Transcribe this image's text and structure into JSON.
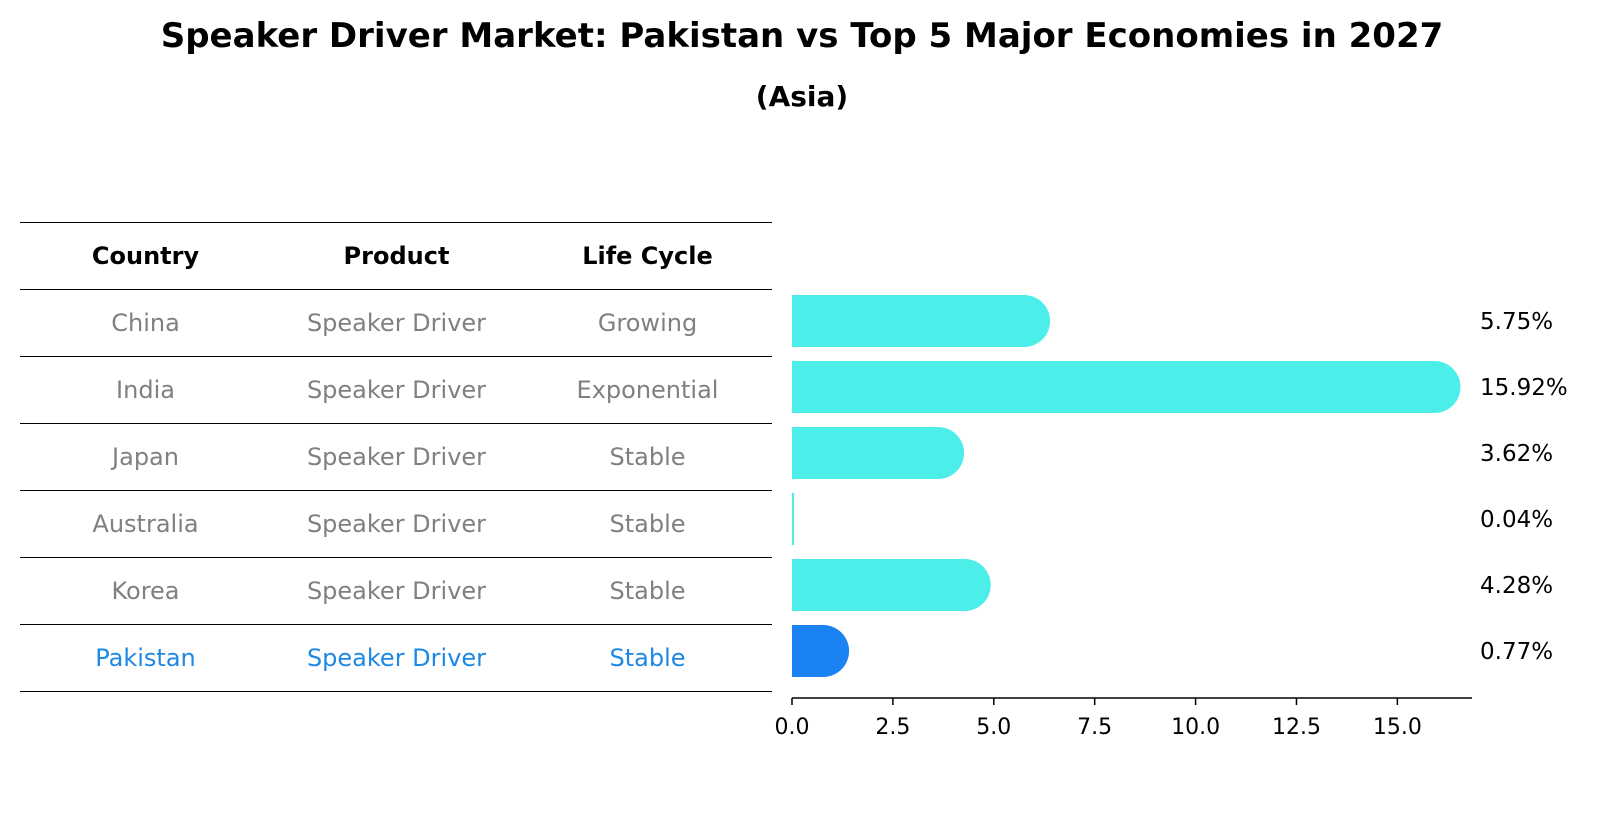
{
  "title": "Speaker Driver Market: Pakistan vs Top 5 Major Economies in 2027",
  "subtitle": "(Asia)",
  "table": {
    "headers": [
      "Country",
      "Product",
      "Life Cycle"
    ],
    "rows": [
      {
        "country": "China",
        "product": "Speaker Driver",
        "life_cycle": "Growing"
      },
      {
        "country": "India",
        "product": "Speaker Driver",
        "life_cycle": "Exponential"
      },
      {
        "country": "Japan",
        "product": "Speaker Driver",
        "life_cycle": "Stable"
      },
      {
        "country": "Australia",
        "product": "Speaker Driver",
        "life_cycle": "Stable"
      },
      {
        "country": "Korea",
        "product": "Speaker Driver",
        "life_cycle": "Stable"
      },
      {
        "country": "Pakistan",
        "product": "Speaker Driver",
        "life_cycle": "Stable"
      }
    ]
  },
  "colors": {
    "bar": "#4ceeea",
    "highlight_bar": "#1a82f2",
    "highlight_text": "#1e88e5",
    "row_text": "#808080"
  },
  "chart_data": {
    "type": "bar",
    "orientation": "horizontal",
    "categories": [
      "China",
      "India",
      "Japan",
      "Australia",
      "Korea",
      "Pakistan"
    ],
    "values": [
      5.75,
      15.92,
      3.62,
      0.04,
      4.28,
      0.77
    ],
    "value_labels": [
      "5.75%",
      "15.92%",
      "3.62%",
      "0.04%",
      "4.28%",
      "0.77%"
    ],
    "highlight": "Pakistan",
    "xlim": [
      0,
      16.8
    ],
    "xticks": [
      0.0,
      2.5,
      5.0,
      7.5,
      10.0,
      12.5,
      15.0
    ],
    "xtick_labels": [
      "0.0",
      "2.5",
      "5.0",
      "7.5",
      "10.0",
      "12.5",
      "15.0"
    ],
    "grid": false
  }
}
